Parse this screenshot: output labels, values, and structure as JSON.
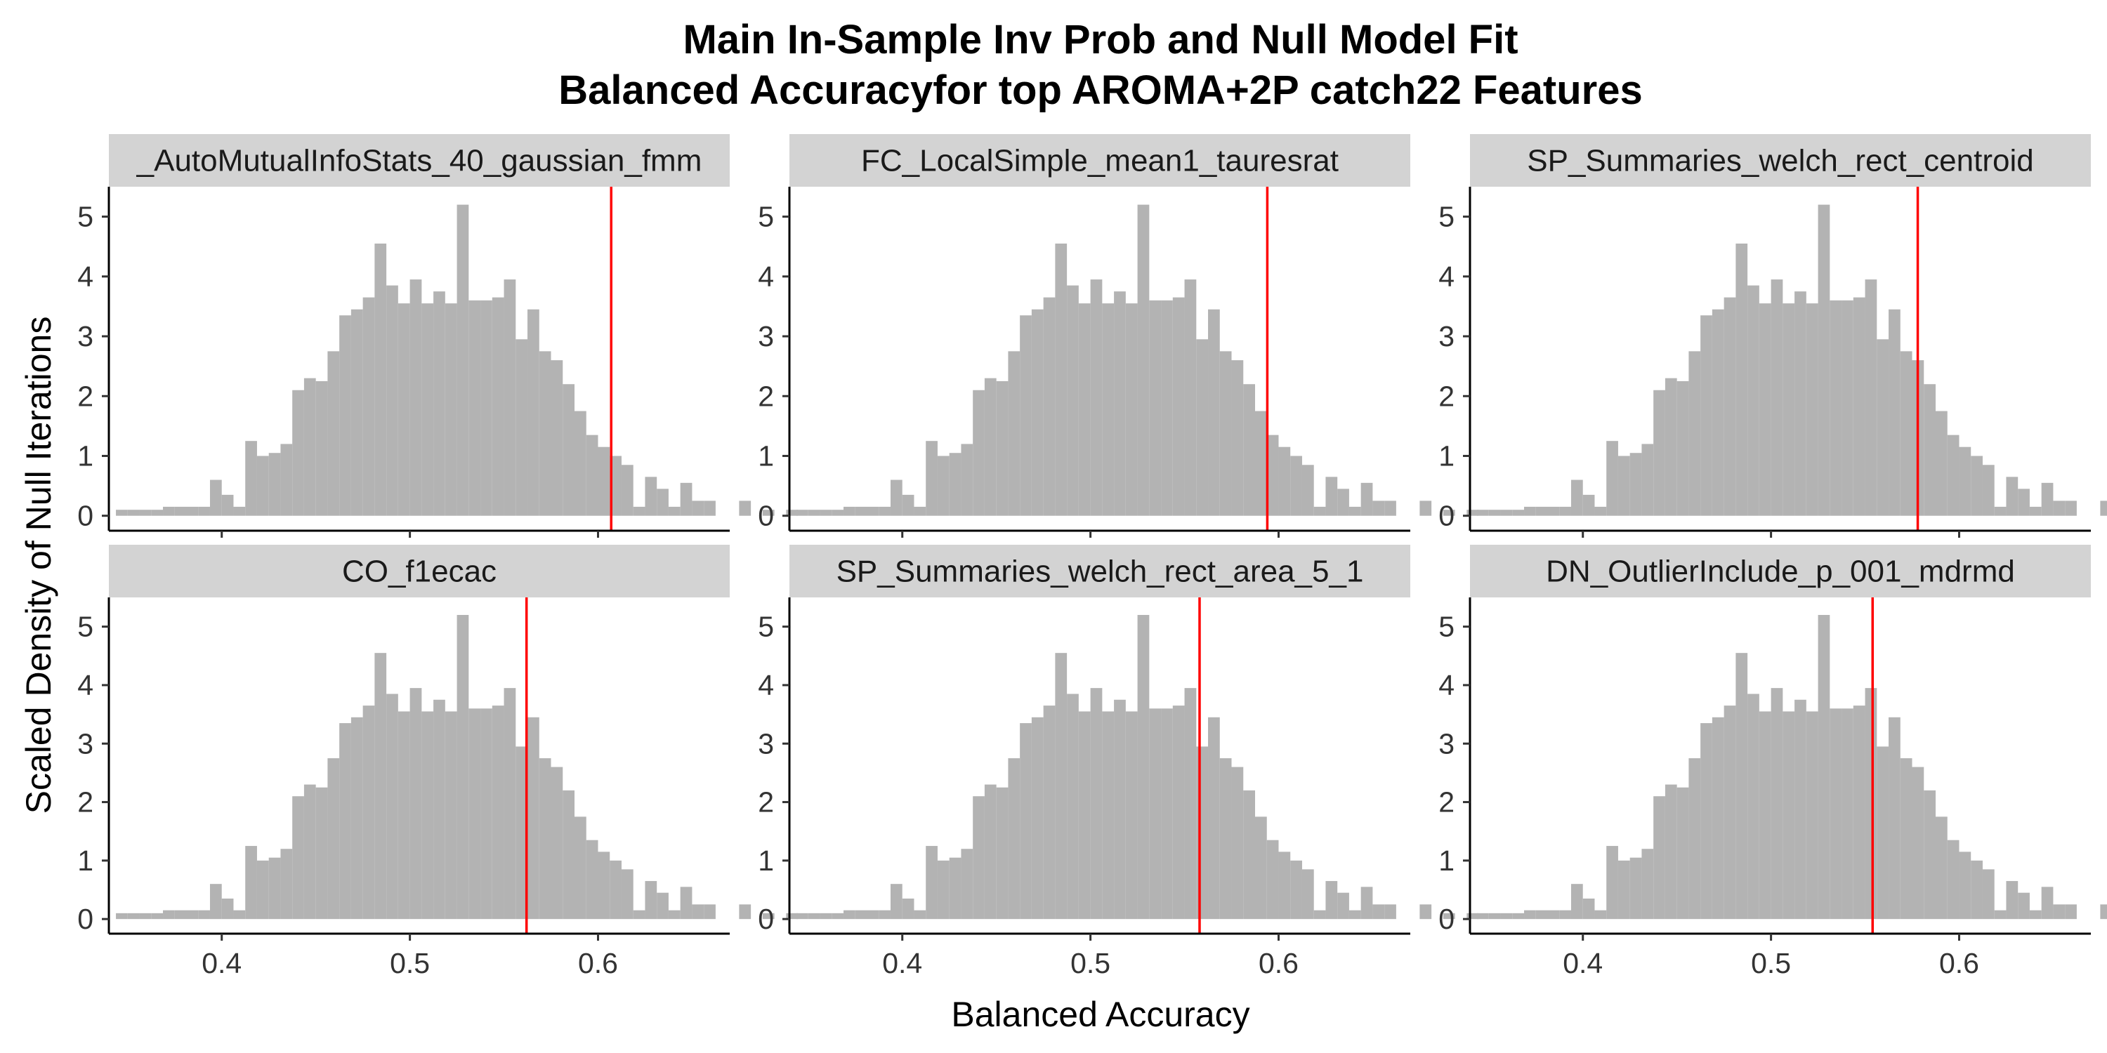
{
  "chart_data": {
    "type": "histogram",
    "title": "Main In-Sample Inv Prob and Null Model Fit",
    "subtitle": "Balanced Accuracyfor top AROMA+2P catch22 Features",
    "xlabel": "Balanced Accuracy",
    "ylabel": "Scaled Density of Null Iterations",
    "xlim": [
      0.34,
      0.67
    ],
    "ylim": [
      -0.25,
      5.5
    ],
    "x_ticks": [
      "0.4",
      "0.5",
      "0.6"
    ],
    "y_ticks": [
      "0",
      "1",
      "2",
      "3",
      "4",
      "5"
    ],
    "bar_color": "#b3b3b3",
    "line_color": "#ff0000",
    "strip_color": "#d3d3d3",
    "layout": "2 rows x 3 columns facet grid",
    "null_distribution": {
      "bin_width": 0.00625,
      "bin_start": 0.34375,
      "density": [
        0.1,
        0.1,
        0.1,
        0.1,
        0.15,
        0.15,
        0.15,
        0.15,
        0.6,
        0.35,
        0.15,
        1.25,
        1.0,
        1.05,
        1.2,
        2.1,
        2.3,
        2.25,
        2.75,
        3.35,
        3.45,
        3.65,
        4.55,
        3.85,
        3.55,
        3.95,
        3.55,
        3.75,
        3.55,
        5.2,
        3.6,
        3.6,
        3.65,
        3.95,
        2.95,
        3.45,
        2.75,
        2.6,
        2.2,
        1.75,
        1.35,
        1.15,
        1.0,
        0.85,
        0.15,
        0.65,
        0.45,
        0.15,
        0.55,
        0.25,
        0.25,
        0.0,
        0.0,
        0.25,
        0.0,
        0.1,
        0.0,
        0.1
      ]
    },
    "panels": [
      {
        "label": "_AutoMutualInfoStats_40_gaussian_fmm",
        "observed": 0.607
      },
      {
        "label": "FC_LocalSimple_mean1_tauresrat",
        "observed": 0.594
      },
      {
        "label": "SP_Summaries_welch_rect_centroid",
        "observed": 0.578
      },
      {
        "label": "CO_f1ecac",
        "observed": 0.562
      },
      {
        "label": "SP_Summaries_welch_rect_area_5_1",
        "observed": 0.558
      },
      {
        "label": "DN_OutlierInclude_p_001_mdrmd",
        "observed": 0.554
      }
    ]
  }
}
